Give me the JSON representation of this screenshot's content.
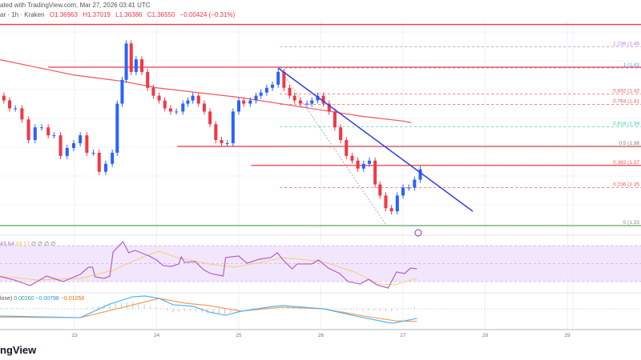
{
  "header": {
    "published": "ated with TradingView.com, Mar 27, 2026 03:41 UTC",
    "symbol": "ar · 1h · Kraken",
    "open": "O1.36963",
    "high": "H1.37019",
    "low": "L1.36386",
    "close": "C1.36550",
    "change": "−0.00424 (−0.31%)"
  },
  "watermark": "ngView",
  "colors": {
    "up": "#2962ff",
    "down": "#f23645",
    "ma": "#f0555a",
    "trend": "#2e3cf0",
    "rsi": "#b45fcc",
    "rsi_ma": "#f5cf6b",
    "macd": "#4fb5f5",
    "signal": "#f79a5a",
    "support": "#4caf50"
  },
  "chart_data": [
    {
      "type": "candlestick",
      "title": "",
      "x_ticks": [
        "23",
        "24",
        "25",
        "26",
        "27",
        "28",
        "29"
      ],
      "xlim": [
        22.07,
        29.9
      ],
      "ylim": [
        1.32,
        1.47
      ],
      "grid": true,
      "x": [
        22.14,
        22.21,
        22.28,
        22.36,
        22.44,
        22.52,
        22.6,
        22.68,
        22.75,
        22.83,
        22.91,
        22.99,
        23.07,
        23.15,
        23.23,
        23.3,
        23.38,
        23.46,
        23.52,
        23.58,
        23.63,
        23.69,
        23.75,
        23.82,
        23.89,
        23.96,
        24.03,
        24.1,
        24.17,
        24.24,
        24.32,
        24.38,
        24.44,
        24.51,
        24.58,
        24.65,
        24.72,
        24.79,
        24.86,
        24.93,
        25.0,
        25.06,
        25.14,
        25.21,
        25.27,
        25.34,
        25.41,
        25.48,
        25.55,
        25.62,
        25.68,
        25.75,
        25.83,
        25.89,
        25.96,
        26.03,
        26.1,
        26.17,
        26.24,
        26.31,
        26.38,
        26.45,
        26.52,
        26.59,
        26.66,
        26.72,
        26.79,
        26.86,
        26.93,
        27.0,
        27.07,
        27.14,
        27.21
      ],
      "close": [
        1.409,
        1.404,
        1.404,
        1.397,
        1.384,
        1.392,
        1.392,
        1.387,
        1.387,
        1.374,
        1.379,
        1.382,
        1.387,
        1.376,
        1.376,
        1.364,
        1.369,
        1.376,
        1.407,
        1.422,
        1.445,
        1.427,
        1.435,
        1.427,
        1.417,
        1.412,
        1.409,
        1.404,
        1.402,
        1.402,
        1.407,
        1.409,
        1.412,
        1.407,
        1.402,
        1.394,
        1.384,
        1.382,
        1.382,
        1.402,
        1.409,
        1.407,
        1.409,
        1.412,
        1.414,
        1.417,
        1.419,
        1.427,
        1.417,
        1.412,
        1.409,
        1.407,
        1.407,
        1.409,
        1.412,
        1.407,
        1.402,
        1.392,
        1.384,
        1.374,
        1.371,
        1.366,
        1.369,
        1.371,
        1.356,
        1.349,
        1.341,
        1.339,
        1.349,
        1.354,
        1.354,
        1.359,
        1.3655
      ],
      "moving_average": {
        "x": [
          22.07,
          23.0,
          23.6,
          24.0,
          24.5,
          25.0,
          25.5,
          26.0,
          26.5,
          27.0,
          27.1
        ],
        "y": [
          1.435,
          1.425,
          1.421,
          1.417,
          1.414,
          1.411,
          1.407,
          1.403,
          1.399,
          1.396,
          1.395
        ]
      },
      "horizontal_lines": [
        {
          "y": 1.457,
          "from": 22.07,
          "color": "#f23645"
        },
        {
          "y": 1.43,
          "from": 22.68,
          "color": "#f23645"
        },
        {
          "y": 1.38,
          "from": 24.25,
          "color": "#f23645"
        },
        {
          "y": 1.368,
          "from": 25.15,
          "color": "#f23645"
        },
        {
          "y": 1.33,
          "from": 22.07,
          "color": "#4caf50"
        }
      ],
      "trendline": {
        "x": [
          25.48,
          27.85
        ],
        "y": [
          1.4295,
          1.339
        ]
      },
      "fib_anchor": {
        "x": [
          25.5,
          26.8
        ],
        "y": [
          1.429,
          1.33
        ]
      },
      "fib_levels": [
        {
          "label": "1.236 (1.46",
          "y": 1.443,
          "color": "#b57edc"
        },
        {
          "label": "1 (1.43",
          "y": 1.4295,
          "color": "#5aa5e6"
        },
        {
          "label": "0.832 (1.42",
          "y": 1.413,
          "color": "#f0555a"
        },
        {
          "label": "0.764 (1.41",
          "y": 1.4065,
          "color": "#f0555a"
        },
        {
          "label": "0.618 (1.39",
          "y": 1.3925,
          "color": "#3cc4a0"
        },
        {
          "label": "0.5 (1.38",
          "y": 1.38,
          "color": "#777777"
        },
        {
          "label": "0.382 (1.37",
          "y": 1.368,
          "color": "#f0555a"
        },
        {
          "label": "0.236 (1.35",
          "y": 1.354,
          "color": "#f0555a"
        },
        {
          "label": "0 (1.33",
          "y": 1.33,
          "color": "#888888"
        }
      ]
    },
    {
      "type": "line",
      "legend": [
        "43.64",
        "33.17",
        "∅",
        "∅",
        "∅",
        "∅"
      ],
      "ylim": [
        0,
        100
      ],
      "bands": [
        30,
        50,
        70
      ],
      "rsi": {
        "x": [
          22.07,
          22.27,
          22.46,
          22.66,
          22.86,
          23.02,
          23.07,
          23.17,
          23.22,
          23.25,
          23.36,
          23.43,
          23.47,
          23.59,
          23.66,
          23.74,
          23.81,
          23.91,
          24.0,
          24.08,
          24.18,
          24.27,
          24.3,
          24.34,
          24.47,
          24.57,
          24.66,
          24.81,
          24.84,
          25.0,
          25.1,
          25.25,
          25.39,
          25.47,
          25.54,
          25.65,
          25.71,
          25.89,
          25.97,
          26.09,
          26.23,
          26.33,
          26.48,
          26.58,
          26.68,
          26.82,
          26.92,
          27.02,
          27.09,
          27.17
        ],
        "y": [
          36.2,
          31.7,
          25.6,
          36.2,
          30.0,
          36.2,
          38.0,
          46.0,
          46.0,
          35.3,
          33.6,
          36.2,
          62.9,
          74.4,
          62.0,
          64.7,
          62.0,
          58.4,
          54.0,
          47.8,
          46.9,
          49.6,
          57.6,
          51.3,
          52.2,
          43.3,
          38.9,
          36.2,
          56.7,
          58.4,
          50.4,
          54.9,
          56.7,
          62.0,
          54.0,
          44.2,
          49.6,
          49.6,
          54.0,
          45.1,
          38.9,
          30.0,
          27.3,
          32.7,
          26.4,
          22.9,
          40.7,
          38.9,
          45.1,
          44.2
        ]
      },
      "rsi_ma": {
        "x": [
          22.07,
          22.56,
          23.07,
          23.46,
          23.86,
          24.03,
          24.25,
          24.64,
          24.94,
          25.33,
          25.52,
          26.02,
          26.41,
          26.7,
          26.9,
          27.17
        ],
        "y": [
          36.2,
          31.8,
          33.6,
          42.4,
          58.4,
          63.8,
          56.7,
          49.6,
          46.0,
          52.2,
          56.7,
          52.2,
          40.7,
          27.3,
          26.4,
          33.6
        ]
      }
    },
    {
      "type": "line",
      "legend": [
        "lose)",
        "0.00260",
        "−0.00798",
        "−0.01058"
      ],
      "macd": {
        "x": [
          22.07,
          23.07,
          23.43,
          23.71,
          23.86,
          24.03,
          24.2,
          24.45,
          24.64,
          24.84,
          25.03,
          25.42,
          25.54,
          26.03,
          26.42,
          26.81,
          26.88,
          27.17
        ],
        "y": [
          -0.006,
          -0.0074,
          0.004,
          0.0101,
          0.0107,
          0.0087,
          0.0034,
          0.002,
          -0.0027,
          -0.0054,
          -0.002,
          0.002,
          0.0027,
          0.0,
          -0.006,
          -0.0114,
          -0.0121,
          -0.008
        ]
      },
      "signal": {
        "x": [
          22.07,
          23.07,
          23.56,
          24.03,
          24.35,
          24.64,
          25.03,
          25.52,
          26.03,
          26.52,
          26.91,
          27.17
        ],
        "y": [
          -0.007,
          -0.0074,
          0.0007,
          0.0087,
          0.0047,
          0.0027,
          -0.002,
          0.0013,
          0.0,
          -0.006,
          -0.0101,
          -0.0106
        ]
      }
    }
  ]
}
